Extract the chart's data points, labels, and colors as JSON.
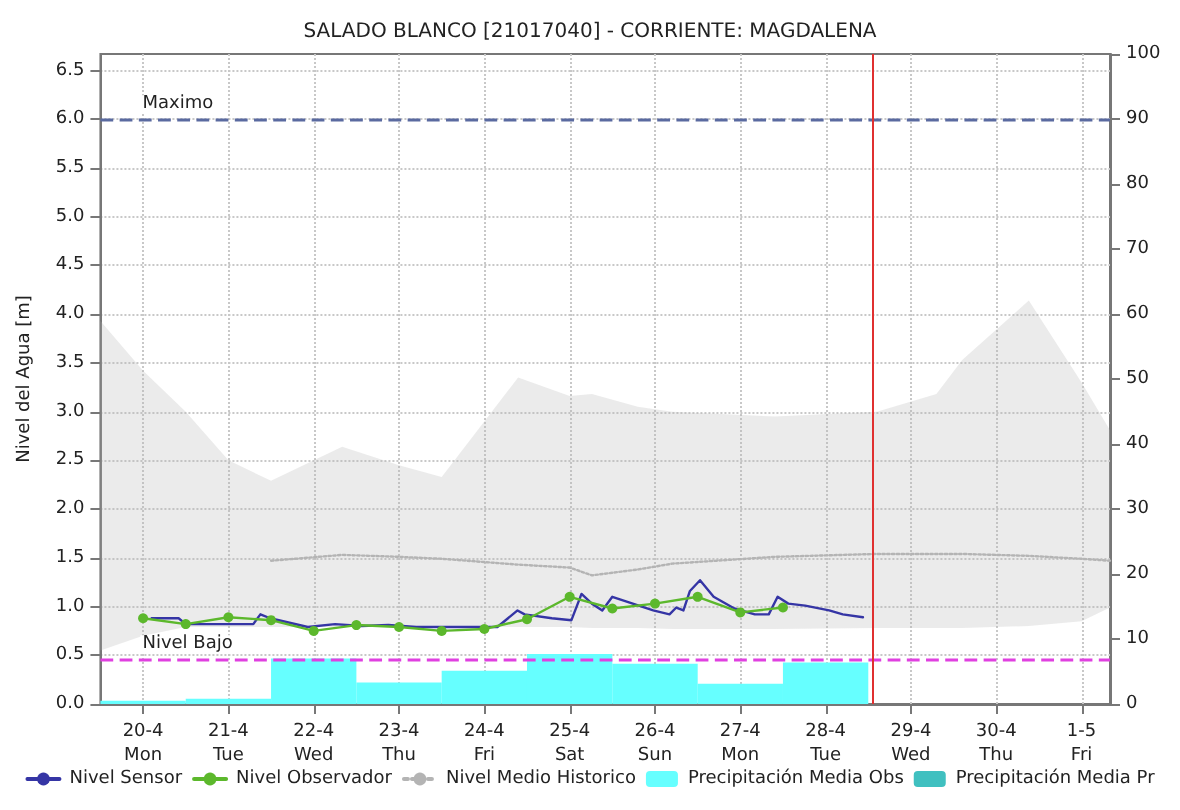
{
  "chart_data": {
    "type": "line",
    "title": "SALADO BLANCO [21017040] - CORRIENTE: MAGDALENA",
    "ylabel": "Nivel del Agua [m]",
    "xlim": [
      "--04-19T12:00",
      "--05-01T08:00"
    ],
    "xticks": [
      {
        "value": "--04-20",
        "label": "20-4\nMon"
      },
      {
        "value": "--04-21",
        "label": "21-4\nTue"
      },
      {
        "value": "--04-22",
        "label": "22-4\nWed"
      },
      {
        "value": "--04-23",
        "label": "23-4\nThu"
      },
      {
        "value": "--04-24",
        "label": "24-4\nFri"
      },
      {
        "value": "--04-25",
        "label": "25-4\nSat"
      },
      {
        "value": "--04-26",
        "label": "26-4\nSun"
      },
      {
        "value": "--04-27",
        "label": "27-4\nMon"
      },
      {
        "value": "--04-28",
        "label": "28-4\nTue"
      },
      {
        "value": "--04-29",
        "label": "29-4\nWed"
      },
      {
        "value": "--04-30",
        "label": "30-4\nThu"
      },
      {
        "value": "--05-01",
        "label": "1-5\nFri"
      }
    ],
    "ylim": [
      0,
      6.67
    ],
    "yticks": [
      {
        "value": 0,
        "label": "0.0"
      },
      {
        "value": 0.5,
        "label": "0.5"
      },
      {
        "value": 1,
        "label": "1.0"
      },
      {
        "value": 1.5,
        "label": "1.5"
      },
      {
        "value": 2,
        "label": "2.0"
      },
      {
        "value": 2.5,
        "label": "2.5"
      },
      {
        "value": 3,
        "label": "3.0"
      },
      {
        "value": 3.5,
        "label": "3.5"
      },
      {
        "value": 4,
        "label": "4.0"
      },
      {
        "value": 4.5,
        "label": "4.5"
      },
      {
        "value": 5,
        "label": "5.0"
      },
      {
        "value": 5.5,
        "label": "5.5"
      },
      {
        "value": 6,
        "label": "6.0"
      },
      {
        "value": 6.5,
        "label": "6.5"
      }
    ],
    "y2lim": [
      0,
      100
    ],
    "y2ticks": [
      0,
      10,
      20,
      30,
      40,
      50,
      60,
      70,
      80,
      90,
      100
    ],
    "grid": true,
    "legend": "bottom",
    "series": [
      {
        "name": "Nivel Sensor",
        "color": "#3535a5",
        "marker": "none",
        "line_style": "solid",
        "x": [
          "--04-20T02:24",
          "--04-20T10:00",
          "--04-20T12:00",
          "--04-21T07:00",
          "--04-21T09:00",
          "--04-21T11:45",
          "--04-21T22:20",
          "--04-22T06:00",
          "--04-22T13:30",
          "--04-22T21:00",
          "--04-23T04:50",
          "--04-23T16:00",
          "--04-24T03:40",
          "--04-24T09:20",
          "--04-24T11:20",
          "--04-24T19:00",
          "--04-25T00:30",
          "--04-25T03:20",
          "--04-25T06:15",
          "--04-25T09:10",
          "--04-25T12:00",
          "--04-25T17:45",
          "--04-25T23:30",
          "--04-26T04:05",
          "--04-26T06:00",
          "--04-26T08:00",
          "--04-26T09:50",
          "--04-26T12:40",
          "--04-26T16:30",
          "--04-26T22:20",
          "--04-27T04:05",
          "--04-27T08:00",
          "--04-27T10:30",
          "--04-27T13:30",
          "--04-27T18:15",
          "--04-28T01:00",
          "--04-28T04:50",
          "--04-28T10:30"
        ],
        "values": [
          0.88,
          0.88,
          0.82,
          0.82,
          0.92,
          0.88,
          0.79,
          0.82,
          0.8,
          0.81,
          0.79,
          0.79,
          0.79,
          0.96,
          0.92,
          0.88,
          0.86,
          1.13,
          1.03,
          0.96,
          1.1,
          1.03,
          0.96,
          0.92,
          0.99,
          0.96,
          1.16,
          1.27,
          1.1,
          0.98,
          0.92,
          0.92,
          1.1,
          1.03,
          1.01,
          0.96,
          0.92,
          0.89
        ]
      },
      {
        "name": "Nivel Observador",
        "color": "#5cb82c",
        "marker": "circle",
        "line_style": "solid",
        "x": [
          "--04-20T00:00",
          "--04-20T12:00",
          "--04-21T00:00",
          "--04-21T12:00",
          "--04-22T00:00",
          "--04-22T12:00",
          "--04-23T00:00",
          "--04-23T12:00",
          "--04-24T00:00",
          "--04-24T12:00",
          "--04-25T00:00",
          "--04-25T12:00",
          "--04-26T00:00",
          "--04-26T12:00",
          "--04-27T00:00",
          "--04-27T12:00"
        ],
        "values": [
          0.88,
          0.82,
          0.89,
          0.86,
          0.75,
          0.81,
          0.79,
          0.75,
          0.77,
          0.87,
          1.1,
          0.98,
          1.03,
          1.1,
          0.94,
          0.99
        ]
      },
      {
        "name": "Nivel Medio Historico",
        "color": "#b4b4b4",
        "marker": "none",
        "line_style": "dotted",
        "x": [
          "--04-19T12:00",
          "--04-20T00:00",
          "--04-20T12:00",
          "--04-21T00:00",
          "--04-21T12:00",
          "--04-22T08:00",
          "--04-23T00:00",
          "--04-23T12:00",
          "--04-24T09:30",
          "--04-25T00:00",
          "--04-25T06:15",
          "--04-25T19:10",
          "--04-26T04:50",
          "--04-27T09:40",
          "--04-28T14:25",
          "--04-29T07:10",
          "--04-29T14:25",
          "--04-30T09:10",
          "--05-01T00:00",
          "--05-01T08:00"
        ],
        "values": [
          null,
          null,
          null,
          null,
          1.47,
          1.53,
          1.51,
          1.49,
          1.43,
          1.4,
          1.32,
          1.38,
          1.44,
          1.51,
          1.54,
          1.54,
          1.54,
          1.52,
          1.49,
          1.47
        ],
        "upper": [
          3.93,
          3.42,
          3.0,
          2.5,
          2.29,
          2.64,
          2.45,
          2.33,
          3.35,
          3.16,
          3.18,
          3.05,
          3.0,
          2.95,
          3.0,
          3.18,
          3.53,
          4.14,
          3.3,
          2.81
        ],
        "lower": [
          0.55,
          0.7,
          0.79,
          0.79,
          0.79,
          0.79,
          0.79,
          0.79,
          0.79,
          0.79,
          0.78,
          0.78,
          0.77,
          0.77,
          0.78,
          0.78,
          0.78,
          0.8,
          0.85,
          0.99
        ]
      },
      {
        "name": "Precipitación Media Obs",
        "type": "bar",
        "axis": "y2",
        "color": "#66ffff",
        "x": [
          "--04-20",
          "--04-21",
          "--04-22",
          "--04-23",
          "--04-24",
          "--04-25",
          "--04-26",
          "--04-27",
          "--04-28"
        ],
        "values": [
          0.5,
          0.8,
          7.0,
          3.3,
          5.1,
          7.7,
          6.2,
          3.1,
          6.4
        ]
      },
      {
        "name": "Precipitación Media Pr",
        "type": "bar",
        "axis": "y2",
        "color": "#40c0c0"
      }
    ],
    "ref_lines": [
      {
        "axis": "y",
        "value": 6.0,
        "label": "Maximo",
        "color": "#5a6aa0",
        "line_style": "dashed"
      },
      {
        "axis": "y",
        "value": 0.46,
        "label": "Nivel Bajo",
        "color": "#e040e0",
        "line_style": "dashed"
      },
      {
        "axis": "x",
        "value": "--04-28T13:00",
        "label": null,
        "color": "#e03030",
        "line_style": "solid"
      }
    ]
  }
}
